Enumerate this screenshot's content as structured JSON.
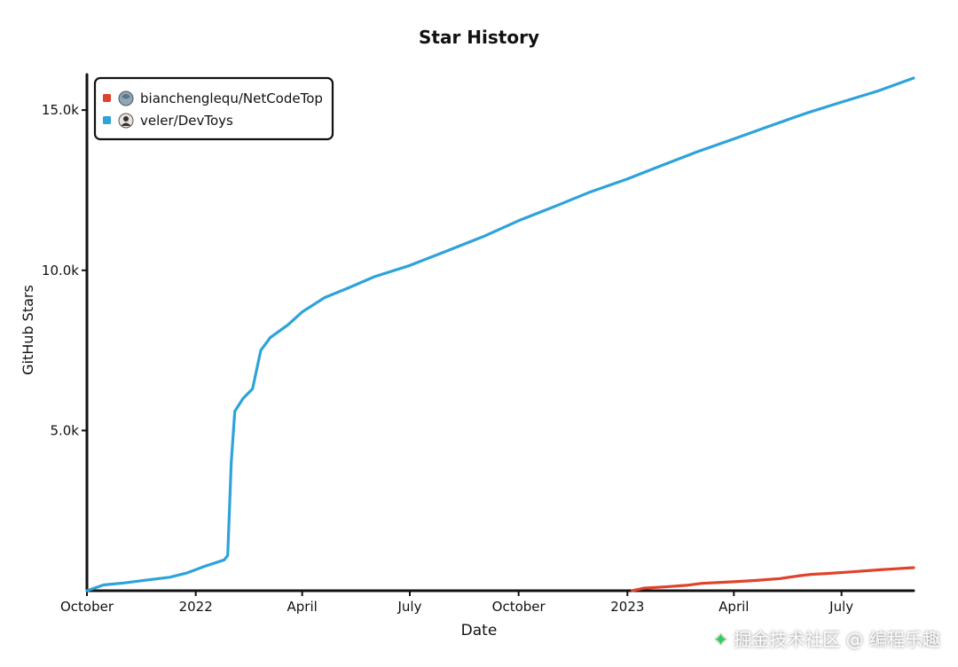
{
  "chart_data": {
    "type": "line",
    "title": "Star History",
    "xlabel": "Date",
    "ylabel": "GitHub Stars",
    "x_ticks": [
      {
        "date": "2021-10-01",
        "label": "October"
      },
      {
        "date": "2022-01-01",
        "label": "2022"
      },
      {
        "date": "2022-04-01",
        "label": "April"
      },
      {
        "date": "2022-07-01",
        "label": "July"
      },
      {
        "date": "2022-10-01",
        "label": "October"
      },
      {
        "date": "2023-01-01",
        "label": "2023"
      },
      {
        "date": "2023-04-01",
        "label": "April"
      },
      {
        "date": "2023-07-01",
        "label": "July"
      }
    ],
    "y_ticks": [
      {
        "value": 5000,
        "label": "5.0k"
      },
      {
        "value": 10000,
        "label": "10.0k"
      },
      {
        "value": 15000,
        "label": "15.0k"
      }
    ],
    "xlim": [
      "2021-10-01",
      "2023-08-31"
    ],
    "ylim": [
      0,
      16000
    ],
    "grid": false,
    "legend_position": "top-left",
    "series": [
      {
        "name": "bianchenglequ/NetCodeTop",
        "color": "#e0432b",
        "icon": "repo-avatar-globe-icon",
        "points": [
          [
            "2023-01-05",
            0
          ],
          [
            "2023-01-15",
            80
          ],
          [
            "2023-02-01",
            120
          ],
          [
            "2023-02-20",
            170
          ],
          [
            "2023-03-05",
            230
          ],
          [
            "2023-04-01",
            280
          ],
          [
            "2023-04-20",
            320
          ],
          [
            "2023-05-10",
            380
          ],
          [
            "2023-05-25",
            460
          ],
          [
            "2023-06-05",
            510
          ],
          [
            "2023-06-20",
            540
          ],
          [
            "2023-07-10",
            590
          ],
          [
            "2023-08-01",
            650
          ],
          [
            "2023-08-31",
            720
          ]
        ]
      },
      {
        "name": "veler/DevToys",
        "color": "#2ea3d9",
        "icon": "user-avatar-icon",
        "points": [
          [
            "2021-10-01",
            0
          ],
          [
            "2021-10-15",
            180
          ],
          [
            "2021-11-01",
            240
          ],
          [
            "2021-11-20",
            330
          ],
          [
            "2021-12-10",
            420
          ],
          [
            "2021-12-25",
            560
          ],
          [
            "2022-01-10",
            780
          ],
          [
            "2022-01-25",
            960
          ],
          [
            "2022-01-28",
            1100
          ],
          [
            "2022-01-31",
            4000
          ],
          [
            "2022-02-03",
            5600
          ],
          [
            "2022-02-10",
            6000
          ],
          [
            "2022-02-18",
            6300
          ],
          [
            "2022-02-25",
            7500
          ],
          [
            "2022-03-05",
            7900
          ],
          [
            "2022-03-20",
            8300
          ],
          [
            "2022-04-01",
            8700
          ],
          [
            "2022-04-20",
            9150
          ],
          [
            "2022-05-10",
            9450
          ],
          [
            "2022-06-01",
            9800
          ],
          [
            "2022-07-01",
            10150
          ],
          [
            "2022-08-01",
            10600
          ],
          [
            "2022-09-01",
            11050
          ],
          [
            "2022-10-01",
            11550
          ],
          [
            "2022-11-01",
            12000
          ],
          [
            "2022-12-01",
            12450
          ],
          [
            "2023-01-01",
            12850
          ],
          [
            "2023-02-01",
            13300
          ],
          [
            "2023-03-01",
            13700
          ],
          [
            "2023-04-01",
            14100
          ],
          [
            "2023-05-01",
            14500
          ],
          [
            "2023-06-01",
            14900
          ],
          [
            "2023-07-01",
            15250
          ],
          [
            "2023-08-01",
            15600
          ],
          [
            "2023-08-31",
            16000
          ]
        ]
      }
    ]
  },
  "watermark": {
    "text": "掘金技术社区 @ 编程乐趣"
  }
}
